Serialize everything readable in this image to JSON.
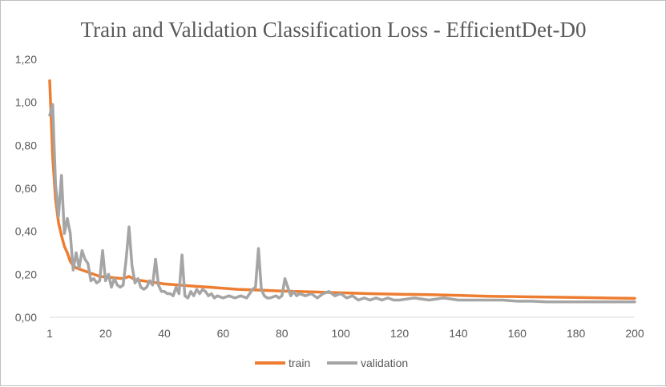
{
  "chart_data": {
    "type": "line",
    "title": "Train and Validation Classification Loss - EfficientDet-D0",
    "xlabel": "",
    "ylabel": "",
    "xlim": [
      1,
      200
    ],
    "ylim": [
      0,
      1.2
    ],
    "x_ticks": [
      1,
      20,
      40,
      60,
      80,
      100,
      120,
      140,
      160,
      180,
      200
    ],
    "x_tick_labels": [
      "1",
      "20",
      "40",
      "60",
      "80",
      "100",
      "120",
      "140",
      "160",
      "180",
      "200"
    ],
    "y_ticks": [
      0,
      0.2,
      0.4,
      0.6,
      0.8,
      1.0,
      1.2
    ],
    "y_tick_labels": [
      "0,00",
      "0,20",
      "0,40",
      "0,60",
      "0,80",
      "1,00",
      "1,20"
    ],
    "grid": false,
    "legend_position": "bottom",
    "series": [
      {
        "name": "train",
        "color": "#ED7D31",
        "points": [
          [
            1,
            1.1
          ],
          [
            2,
            0.75
          ],
          [
            3,
            0.55
          ],
          [
            4,
            0.44
          ],
          [
            5,
            0.38
          ],
          [
            6,
            0.33
          ],
          [
            7,
            0.3
          ],
          [
            8,
            0.26
          ],
          [
            9,
            0.24
          ],
          [
            10,
            0.23
          ],
          [
            12,
            0.22
          ],
          [
            15,
            0.205
          ],
          [
            18,
            0.19
          ],
          [
            22,
            0.185
          ],
          [
            26,
            0.18
          ],
          [
            28,
            0.19
          ],
          [
            30,
            0.175
          ],
          [
            35,
            0.165
          ],
          [
            40,
            0.155
          ],
          [
            45,
            0.15
          ],
          [
            50,
            0.145
          ],
          [
            55,
            0.14
          ],
          [
            60,
            0.135
          ],
          [
            65,
            0.13
          ],
          [
            70,
            0.128
          ],
          [
            75,
            0.125
          ],
          [
            80,
            0.122
          ],
          [
            85,
            0.12
          ],
          [
            90,
            0.118
          ],
          [
            95,
            0.116
          ],
          [
            100,
            0.114
          ],
          [
            110,
            0.11
          ],
          [
            120,
            0.107
          ],
          [
            130,
            0.105
          ],
          [
            140,
            0.102
          ],
          [
            150,
            0.098
          ],
          [
            160,
            0.096
          ],
          [
            170,
            0.094
          ],
          [
            180,
            0.092
          ],
          [
            190,
            0.09
          ],
          [
            200,
            0.088
          ]
        ]
      },
      {
        "name": "validation",
        "color": "#A5A5A5",
        "points": [
          [
            1,
            0.94
          ],
          [
            2,
            0.99
          ],
          [
            3,
            0.62
          ],
          [
            4,
            0.47
          ],
          [
            5,
            0.66
          ],
          [
            6,
            0.39
          ],
          [
            7,
            0.46
          ],
          [
            8,
            0.39
          ],
          [
            9,
            0.22
          ],
          [
            10,
            0.3
          ],
          [
            11,
            0.23
          ],
          [
            12,
            0.31
          ],
          [
            13,
            0.27
          ],
          [
            14,
            0.25
          ],
          [
            15,
            0.17
          ],
          [
            16,
            0.18
          ],
          [
            17,
            0.16
          ],
          [
            18,
            0.17
          ],
          [
            19,
            0.31
          ],
          [
            20,
            0.17
          ],
          [
            21,
            0.2
          ],
          [
            22,
            0.14
          ],
          [
            23,
            0.18
          ],
          [
            24,
            0.15
          ],
          [
            25,
            0.14
          ],
          [
            26,
            0.15
          ],
          [
            27,
            0.27
          ],
          [
            28,
            0.42
          ],
          [
            29,
            0.24
          ],
          [
            30,
            0.16
          ],
          [
            31,
            0.18
          ],
          [
            32,
            0.14
          ],
          [
            33,
            0.13
          ],
          [
            34,
            0.14
          ],
          [
            35,
            0.17
          ],
          [
            36,
            0.15
          ],
          [
            37,
            0.27
          ],
          [
            38,
            0.15
          ],
          [
            39,
            0.12
          ],
          [
            40,
            0.12
          ],
          [
            41,
            0.11
          ],
          [
            42,
            0.11
          ],
          [
            43,
            0.1
          ],
          [
            44,
            0.14
          ],
          [
            45,
            0.11
          ],
          [
            46,
            0.29
          ],
          [
            47,
            0.1
          ],
          [
            48,
            0.09
          ],
          [
            49,
            0.12
          ],
          [
            50,
            0.1
          ],
          [
            51,
            0.13
          ],
          [
            52,
            0.11
          ],
          [
            53,
            0.13
          ],
          [
            54,
            0.12
          ],
          [
            55,
            0.1
          ],
          [
            56,
            0.11
          ],
          [
            57,
            0.09
          ],
          [
            58,
            0.1
          ],
          [
            60,
            0.09
          ],
          [
            62,
            0.1
          ],
          [
            64,
            0.09
          ],
          [
            66,
            0.1
          ],
          [
            68,
            0.09
          ],
          [
            70,
            0.13
          ],
          [
            71,
            0.14
          ],
          [
            72,
            0.32
          ],
          [
            73,
            0.13
          ],
          [
            74,
            0.1
          ],
          [
            75,
            0.09
          ],
          [
            76,
            0.09
          ],
          [
            78,
            0.1
          ],
          [
            79,
            0.09
          ],
          [
            80,
            0.1
          ],
          [
            81,
            0.18
          ],
          [
            82,
            0.14
          ],
          [
            83,
            0.1
          ],
          [
            84,
            0.12
          ],
          [
            85,
            0.1
          ],
          [
            86,
            0.11
          ],
          [
            88,
            0.1
          ],
          [
            90,
            0.11
          ],
          [
            92,
            0.09
          ],
          [
            94,
            0.11
          ],
          [
            96,
            0.12
          ],
          [
            98,
            0.1
          ],
          [
            100,
            0.11
          ],
          [
            102,
            0.09
          ],
          [
            104,
            0.1
          ],
          [
            106,
            0.08
          ],
          [
            108,
            0.09
          ],
          [
            110,
            0.08
          ],
          [
            112,
            0.09
          ],
          [
            114,
            0.08
          ],
          [
            116,
            0.09
          ],
          [
            118,
            0.08
          ],
          [
            120,
            0.08
          ],
          [
            125,
            0.09
          ],
          [
            130,
            0.08
          ],
          [
            135,
            0.09
          ],
          [
            140,
            0.08
          ],
          [
            145,
            0.08
          ],
          [
            150,
            0.08
          ],
          [
            155,
            0.08
          ],
          [
            160,
            0.075
          ],
          [
            165,
            0.075
          ],
          [
            170,
            0.072
          ],
          [
            175,
            0.072
          ],
          [
            180,
            0.072
          ],
          [
            185,
            0.072
          ],
          [
            190,
            0.072
          ],
          [
            195,
            0.072
          ],
          [
            200,
            0.072
          ]
        ]
      }
    ]
  }
}
